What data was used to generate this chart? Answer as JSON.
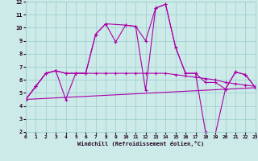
{
  "xlabel": "Windchill (Refroidissement éolien,°C)",
  "xlim": [
    0,
    23
  ],
  "ylim": [
    2,
    12
  ],
  "yticks": [
    2,
    3,
    4,
    5,
    6,
    7,
    8,
    9,
    10,
    11,
    12
  ],
  "xticks": [
    0,
    1,
    2,
    3,
    4,
    5,
    6,
    7,
    8,
    9,
    10,
    11,
    12,
    13,
    14,
    15,
    16,
    17,
    18,
    19,
    20,
    21,
    22,
    23
  ],
  "bg_color": "#cceae7",
  "line_color": "#aa00aa",
  "grid_color": "#99cccc",
  "line1_x": [
    0,
    1,
    2,
    3,
    4,
    5,
    6,
    7,
    8,
    10,
    11,
    12,
    13,
    14,
    15,
    16,
    17,
    18,
    19,
    20,
    21,
    22,
    23
  ],
  "line1_y": [
    4.5,
    5.5,
    6.5,
    6.7,
    4.5,
    6.5,
    6.5,
    9.5,
    10.3,
    10.2,
    10.1,
    5.2,
    11.5,
    11.8,
    8.5,
    6.5,
    6.5,
    2.0,
    1.9,
    5.3,
    6.6,
    6.4,
    5.4
  ],
  "line2_x": [
    0,
    1,
    2,
    3,
    4,
    5,
    6,
    7,
    8,
    9,
    10,
    11,
    12,
    13,
    14,
    15,
    16,
    17,
    18,
    19,
    20,
    21,
    22,
    23
  ],
  "line2_y": [
    4.5,
    5.5,
    6.5,
    6.7,
    6.5,
    6.5,
    6.5,
    9.5,
    10.3,
    8.9,
    10.2,
    10.1,
    9.0,
    11.5,
    11.8,
    8.5,
    6.5,
    6.5,
    5.8,
    5.8,
    5.3,
    6.6,
    6.4,
    5.4
  ],
  "line3_x": [
    0,
    1,
    2,
    3,
    4,
    5,
    6,
    7,
    8,
    9,
    10,
    11,
    12,
    13,
    14,
    15,
    16,
    17,
    18,
    19,
    20,
    21,
    22,
    23
  ],
  "line3_y": [
    4.5,
    5.5,
    6.5,
    6.7,
    6.5,
    6.5,
    6.5,
    6.5,
    6.5,
    6.5,
    6.5,
    6.5,
    6.5,
    6.5,
    6.5,
    6.4,
    6.3,
    6.2,
    6.1,
    6.0,
    5.8,
    5.7,
    5.6,
    5.5
  ],
  "line4_x": [
    0,
    23
  ],
  "line4_y": [
    4.5,
    5.4
  ]
}
